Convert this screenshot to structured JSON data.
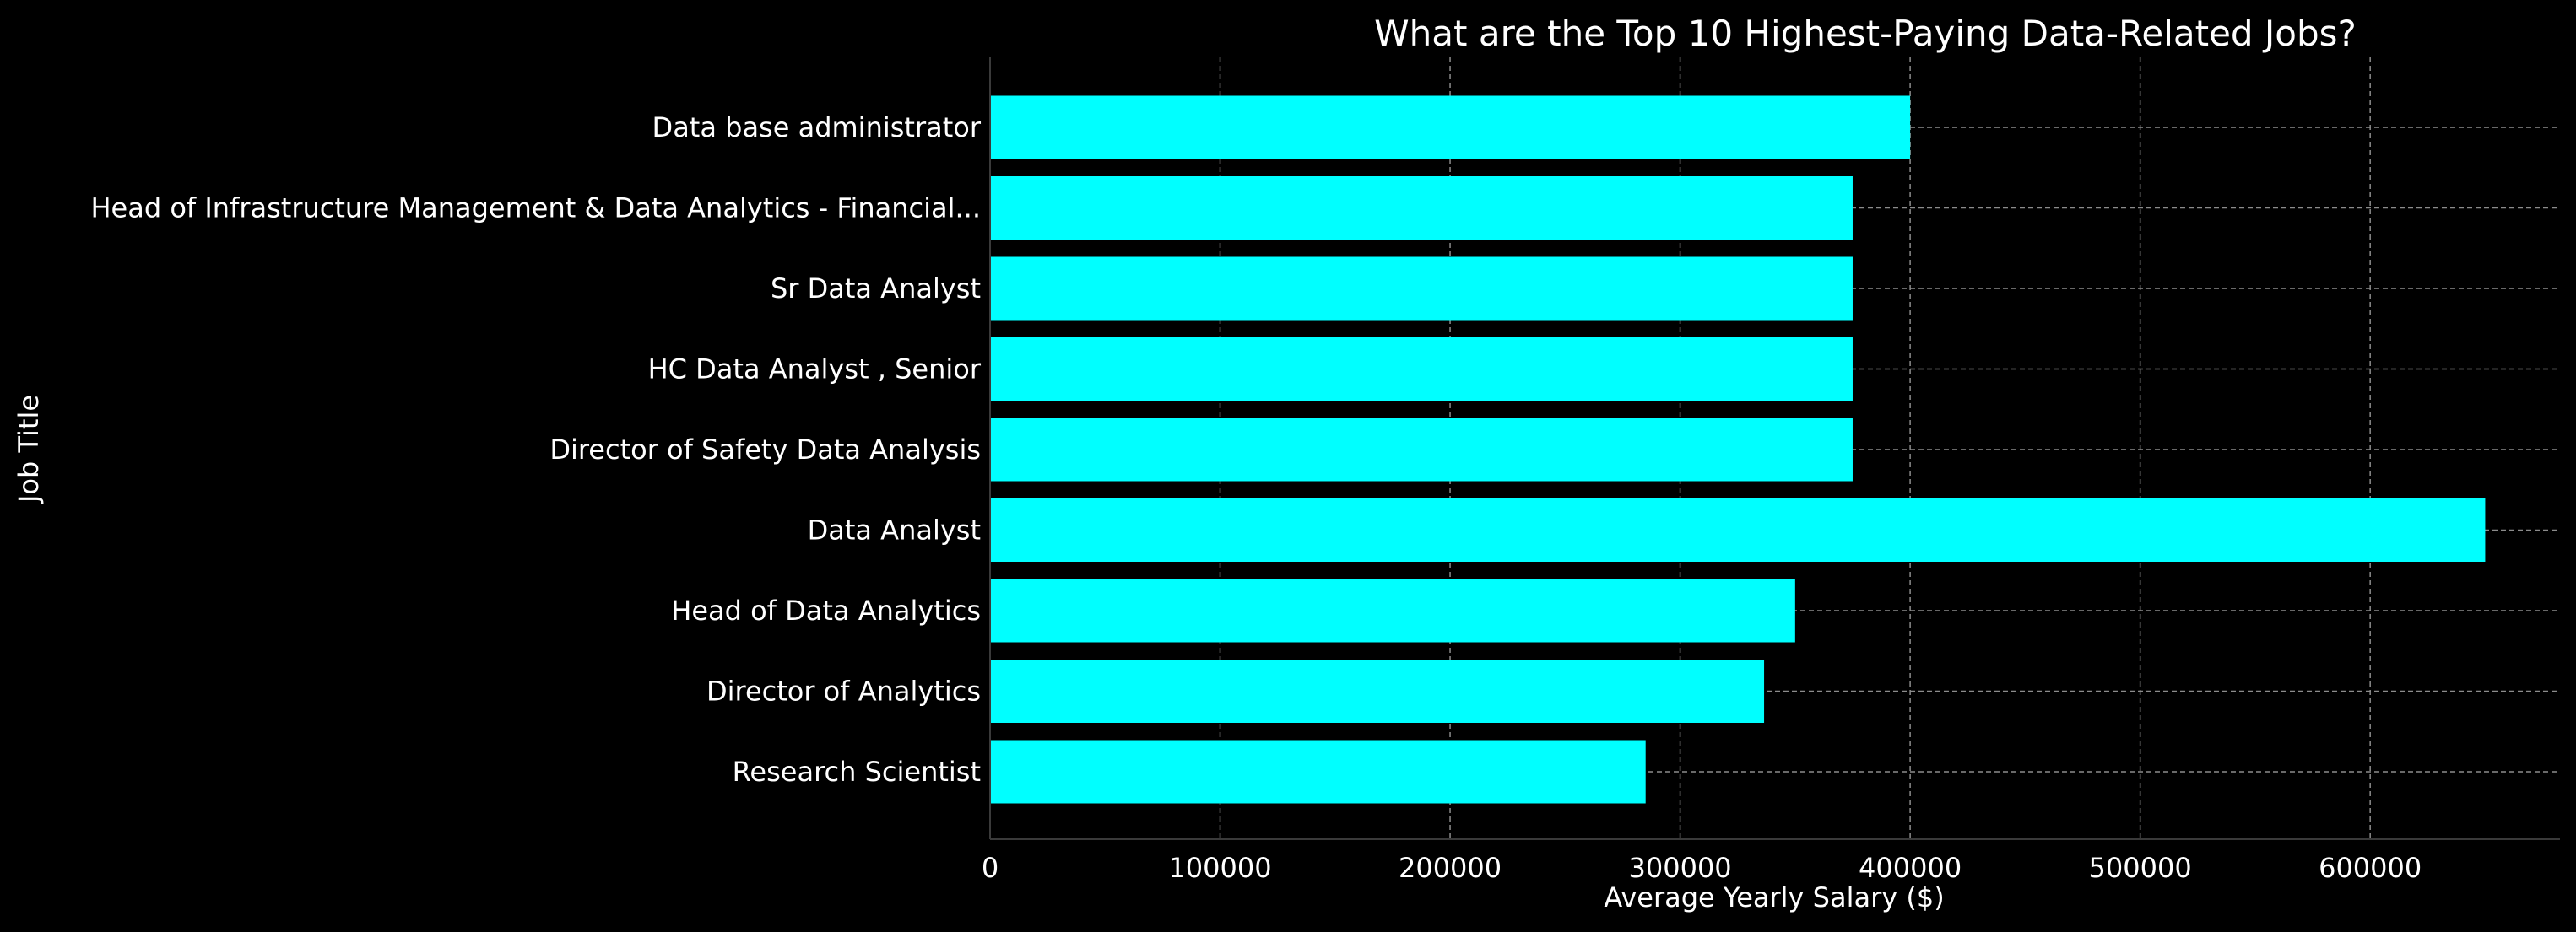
{
  "chart_data": {
    "type": "bar",
    "orientation": "horizontal",
    "title": "What are the Top 10 Highest-Paying Data-Related Jobs?",
    "xlabel": "Average Yearly Salary ($)",
    "ylabel": "Job Title",
    "categories": [
      "Data base administrator",
      "Head of Infrastructure Management & Data Analytics - Financial...",
      "Sr Data Analyst",
      "HC Data Analyst , Senior",
      "Director of Safety Data Analysis",
      "Data Analyst",
      "Head of Data Analytics",
      "Director of Analytics",
      "Research Scientist"
    ],
    "values": [
      400000,
      375000,
      375000,
      375000,
      375000,
      650000,
      350000,
      336500,
      285000
    ],
    "xlim": [
      0,
      682500
    ],
    "xticks": [
      0,
      100000,
      200000,
      300000,
      400000,
      500000,
      600000
    ],
    "grid": true,
    "legend": "none",
    "colors": {
      "bar": "#00ffff",
      "background": "#000000",
      "text": "#ffffff",
      "grid": "#8c8c8c",
      "axis": "#3a3a3a"
    }
  }
}
